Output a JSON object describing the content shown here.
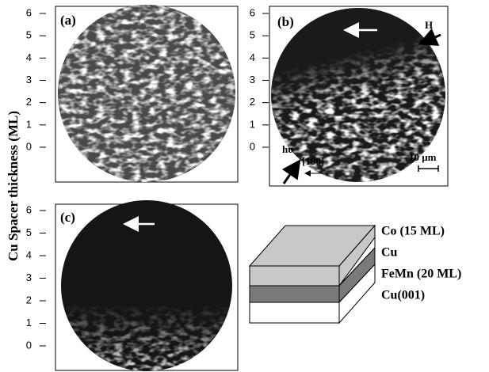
{
  "figure": {
    "y_axis_label": "Cu Spacer thickness (ML)",
    "panels": [
      {
        "label": "(a)",
        "ticks": [
          0,
          1,
          2,
          3,
          4,
          5,
          6
        ]
      },
      {
        "label": "(b)",
        "ticks": [
          0,
          1,
          2,
          3,
          4,
          5,
          6
        ]
      },
      {
        "label": "(c)",
        "ticks": [
          0,
          1,
          2,
          3,
          4,
          5,
          6
        ]
      }
    ],
    "annotations": {
      "field": "H",
      "photon": "hυ",
      "direction": "[100]",
      "scale": "10 μm"
    },
    "layers": [
      "Co (15 ML)",
      "Cu",
      "FeMn (20 ML)",
      "Cu(001)"
    ]
  }
}
